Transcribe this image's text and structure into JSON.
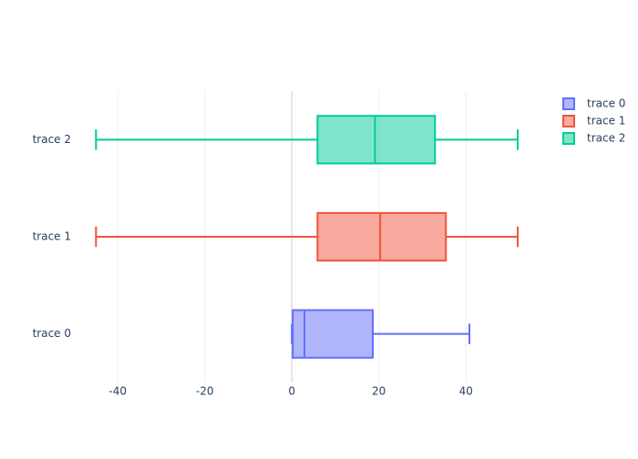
{
  "chart_data": {
    "type": "box",
    "orientation": "h",
    "series": [
      {
        "name": "trace 0",
        "color": "#636efa",
        "min": 0,
        "q1": 0.2,
        "median": 2.9,
        "q3": 18.6,
        "max": 40.8
      },
      {
        "name": "trace 1",
        "color": "#ef553b",
        "min": -45,
        "q1": 5.9,
        "median": 20.3,
        "q3": 35.4,
        "max": 51.9
      },
      {
        "name": "trace 2",
        "color": "#00cc96",
        "min": -45,
        "q1": 5.9,
        "median": 19.1,
        "q3": 32.9,
        "max": 51.9
      }
    ],
    "xlim": [
      -50.3,
      56.5
    ],
    "xticks": [
      -40,
      -20,
      0,
      20,
      40
    ],
    "grid": true,
    "zeroline": true,
    "legend": "top-right"
  }
}
